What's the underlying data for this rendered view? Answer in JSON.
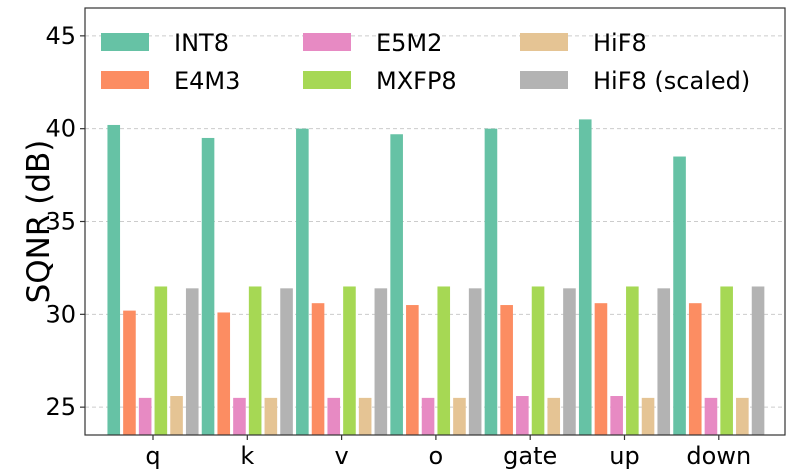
{
  "chart_data": {
    "type": "bar",
    "categories": [
      "q",
      "k",
      "v",
      "o",
      "gate",
      "up",
      "down"
    ],
    "series": [
      {
        "name": "INT8",
        "color": "#66c2a5",
        "values": [
          40.2,
          39.5,
          40.0,
          39.7,
          40.0,
          40.5,
          38.5
        ]
      },
      {
        "name": "E4M3",
        "color": "#fc8d62",
        "values": [
          30.2,
          30.1,
          30.6,
          30.5,
          30.5,
          30.6,
          30.6
        ]
      },
      {
        "name": "E5M2",
        "color": "#e78ac3",
        "values": [
          25.5,
          25.5,
          25.5,
          25.5,
          25.6,
          25.6,
          25.5
        ]
      },
      {
        "name": "MXFP8",
        "color": "#a6d854",
        "values": [
          31.5,
          31.5,
          31.5,
          31.5,
          31.5,
          31.5,
          31.5
        ]
      },
      {
        "name": "HiF8",
        "color": "#e5c494",
        "values": [
          25.6,
          25.5,
          25.5,
          25.5,
          25.5,
          25.5,
          25.5
        ]
      },
      {
        "name": "HiF8 (scaled)",
        "color": "#b3b3b3",
        "values": [
          31.4,
          31.4,
          31.4,
          31.4,
          31.4,
          31.4,
          31.5
        ]
      }
    ],
    "xlabel": "",
    "ylabel": "SQNR (dB)",
    "ylim": [
      23.5,
      46.5
    ],
    "yticks": [
      25,
      30,
      35,
      40,
      45
    ],
    "grid": true,
    "legend": {
      "placement": "top",
      "columns": 3
    }
  }
}
